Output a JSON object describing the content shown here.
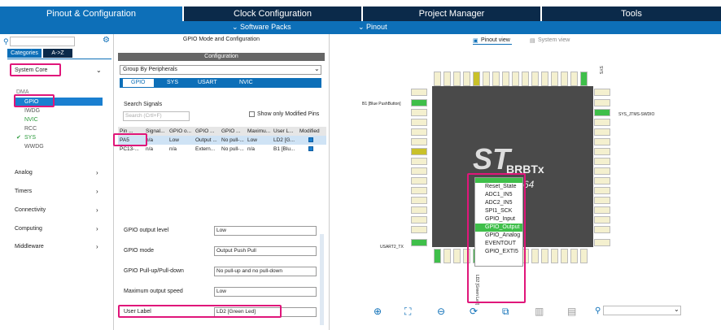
{
  "tabs": [
    "Pinout & Configuration",
    "Clock Configuration",
    "Project Manager",
    "Tools"
  ],
  "subtabs": {
    "software": "Software Packs",
    "pinout": "Pinout"
  },
  "left": {
    "categories": "Categories",
    "az": "A->Z",
    "systemcore": "System Core",
    "items": [
      "DMA",
      "GPIO",
      "IWDG",
      "NVIC",
      "RCC",
      "SYS",
      "WWDG"
    ],
    "groups": [
      "Analog",
      "Timers",
      "Connectivity",
      "Computing",
      "Middleware"
    ]
  },
  "middle": {
    "title": "GPIO Mode and Configuration",
    "config": "Configuration",
    "groupby": "Group By Peripherals",
    "subtabs": [
      "GPIO",
      "SYS",
      "USART",
      "NVIC"
    ],
    "search_label": "Search Signals",
    "search_ph": "Search (Crtl+F)",
    "show_modified": "Show only Modified Pins",
    "headers": [
      "Pin ...",
      "Signal...",
      "GPIO o...",
      "GPIO ...",
      "GPIO ...",
      "Maximu...",
      "User L...",
      "Modified"
    ],
    "rows": [
      [
        "PA5",
        "n/a",
        "Low",
        "Output ...",
        "No pull-...",
        "Low",
        "LD2 [G...",
        ""
      ],
      [
        "PC13-...",
        "n/a",
        "n/a",
        "Extern...",
        "No pull-...",
        "n/a",
        "B1 [Blu...",
        ""
      ]
    ],
    "fields": [
      {
        "label": "GPIO output level",
        "value": "Low"
      },
      {
        "label": "GPIO mode",
        "value": "Output Push Pull"
      },
      {
        "label": "GPIO Pull-up/Pull-down",
        "value": "No pull-up and no pull-down"
      },
      {
        "label": "Maximum output speed",
        "value": "Low"
      },
      {
        "label": "User Label",
        "value": "LD2 [Green Led]"
      }
    ]
  },
  "right": {
    "pinoutview": "Pinout view",
    "systemview": "System view",
    "chip_text": "BRBTx",
    "chip_text2": "64",
    "ctx_items": [
      "Reset_State",
      "ADC1_IN5",
      "ADC2_IN5",
      "SPI1_SCK",
      "GPIO_Input",
      "GPIO_Output",
      "GPIO_Analog",
      "EVENTOUT",
      "GPIO_EXTI5"
    ],
    "labels": {
      "b1": "B1 [Blue PushButton]",
      "sys": "SYS_JTMS-SWDIO",
      "usart": "USART2_TX",
      "swo": "SYS",
      "led": "LD2 [Green Led]"
    }
  },
  "colors": {
    "accent": "#0d6fb8",
    "dark": "#0b2a4a",
    "pink": "#e0167a",
    "green": "#3fbf4a"
  }
}
